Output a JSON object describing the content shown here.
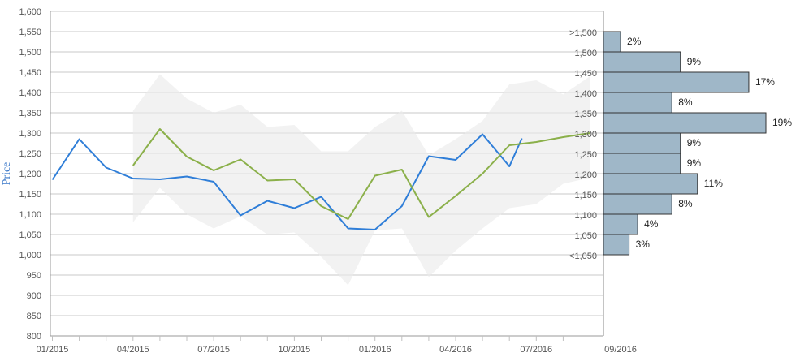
{
  "chart_data": {
    "type": "line",
    "ylabel": "Price",
    "ylim": [
      800,
      1600
    ],
    "yticks": [
      "800",
      "850",
      "900",
      "950",
      "1,000",
      "1,050",
      "1,100",
      "1,150",
      "1,200",
      "1,250",
      "1,300",
      "1,350",
      "1,400",
      "1,450",
      "1,500",
      "1,550",
      "1,600"
    ],
    "x_tick_labels": [
      "01/2015",
      "04/2015",
      "07/2015",
      "10/2015",
      "01/2016",
      "04/2016",
      "07/2016",
      "09/2016"
    ],
    "grid": true,
    "colors": {
      "actual": "#2f7ed8",
      "forecast": "#8bb04a",
      "band": "#ebebeb",
      "bars": "#9fb7c8",
      "bar_border": "#333333"
    },
    "series": [
      {
        "values": [
          {
            "x": "2015-01",
            "y": 1185
          },
          {
            "x": "2015-02",
            "y": 1285
          },
          {
            "x": "2015-03",
            "y": 1215
          },
          {
            "x": "2015-04",
            "y": 1188
          },
          {
            "x": "2015-05",
            "y": 1186
          },
          {
            "x": "2015-06",
            "y": 1193
          },
          {
            "x": "2015-07",
            "y": 1180
          },
          {
            "x": "2015-08",
            "y": 1097
          },
          {
            "x": "2015-09",
            "y": 1133
          },
          {
            "x": "2015-10",
            "y": 1115
          },
          {
            "x": "2015-11",
            "y": 1143
          },
          {
            "x": "2015-12",
            "y": 1065
          },
          {
            "x": "2016-01",
            "y": 1062
          },
          {
            "x": "2016-02",
            "y": 1120
          },
          {
            "x": "2016-03",
            "y": 1243
          },
          {
            "x": "2016-04",
            "y": 1234
          },
          {
            "x": "2016-05",
            "y": 1297
          },
          {
            "x": "2016-06",
            "y": 1218
          },
          {
            "x": "2016-06-15",
            "y": 1287
          }
        ]
      },
      {
        "values": [
          {
            "x": "2015-04",
            "y": 1220
          },
          {
            "x": "2015-05",
            "y": 1310
          },
          {
            "x": "2015-06",
            "y": 1242
          },
          {
            "x": "2015-07",
            "y": 1208
          },
          {
            "x": "2015-08",
            "y": 1235
          },
          {
            "x": "2015-09",
            "y": 1183
          },
          {
            "x": "2015-10",
            "y": 1186
          },
          {
            "x": "2015-11",
            "y": 1120
          },
          {
            "x": "2015-12",
            "y": 1088
          },
          {
            "x": "2016-01",
            "y": 1195
          },
          {
            "x": "2016-02",
            "y": 1210
          },
          {
            "x": "2016-03",
            "y": 1093
          },
          {
            "x": "2016-04",
            "y": 1145
          },
          {
            "x": "2016-05",
            "y": 1200
          },
          {
            "x": "2016-06",
            "y": 1270
          },
          {
            "x": "2016-07",
            "y": 1278
          },
          {
            "x": "2016-08",
            "y": 1290
          },
          {
            "x": "2016-09",
            "y": 1300
          }
        ]
      }
    ],
    "band": [
      {
        "x": "2015-04",
        "low": 1080,
        "high": 1355
      },
      {
        "x": "2015-05",
        "low": 1165,
        "high": 1445
      },
      {
        "x": "2015-06",
        "low": 1100,
        "high": 1385
      },
      {
        "x": "2015-07",
        "low": 1065,
        "high": 1350
      },
      {
        "x": "2015-08",
        "low": 1095,
        "high": 1370
      },
      {
        "x": "2015-09",
        "low": 1050,
        "high": 1315
      },
      {
        "x": "2015-10",
        "low": 1055,
        "high": 1320
      },
      {
        "x": "2015-11",
        "low": 995,
        "high": 1255
      },
      {
        "x": "2015-12",
        "low": 925,
        "high": 1255
      },
      {
        "x": "2016-01",
        "low": 1060,
        "high": 1315
      },
      {
        "x": "2016-02",
        "low": 1065,
        "high": 1355
      },
      {
        "x": "2016-03",
        "low": 945,
        "high": 1245
      },
      {
        "x": "2016-04",
        "low": 1010,
        "high": 1285
      },
      {
        "x": "2016-05",
        "low": 1065,
        "high": 1330
      },
      {
        "x": "2016-06",
        "low": 1115,
        "high": 1420
      },
      {
        "x": "2016-07",
        "low": 1125,
        "high": 1430
      },
      {
        "x": "2016-08",
        "low": 1175,
        "high": 1395
      },
      {
        "x": "2016-09",
        "low": 1190,
        "high": 1440
      }
    ],
    "distribution": [
      {
        "label": ">1,500",
        "pct": 2,
        "text": "2%"
      },
      {
        "label": "1,500",
        "pct": 9,
        "text": "9%"
      },
      {
        "label": "1,450",
        "pct": 17,
        "text": "17%"
      },
      {
        "label": "1,400",
        "pct": 8,
        "text": "8%"
      },
      {
        "label": "1,350",
        "pct": 19,
        "text": "19%"
      },
      {
        "label": "1,300",
        "pct": 9,
        "text": "9%"
      },
      {
        "label": "1,250",
        "pct": 9,
        "text": "9%"
      },
      {
        "label": "1,200",
        "pct": 11,
        "text": "11%"
      },
      {
        "label": "1,150",
        "pct": 8,
        "text": "8%"
      },
      {
        "label": "1,100",
        "pct": 4,
        "text": "4%"
      },
      {
        "label": "1,050",
        "pct": 3,
        "text": "3%"
      }
    ],
    "distribution_label_extra": "<1,050"
  }
}
